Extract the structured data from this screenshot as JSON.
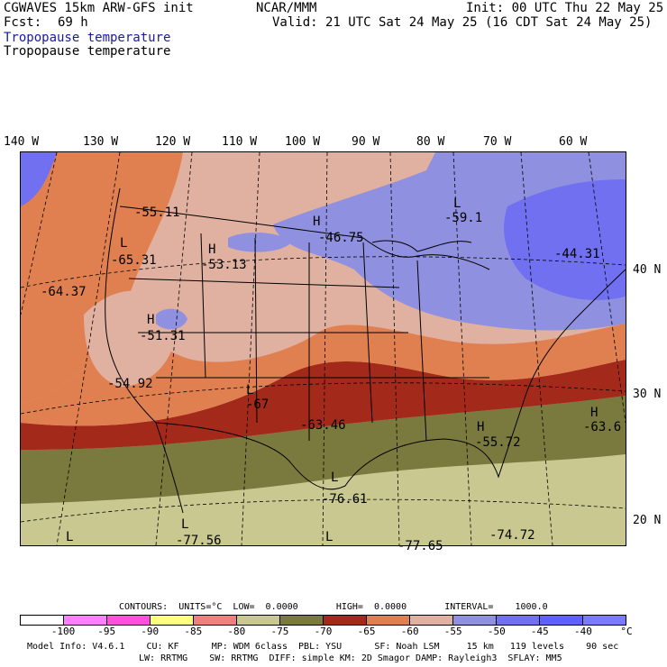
{
  "header": {
    "model": "CGWAVES 15km ARW-GFS init",
    "center": "NCAR/MMM",
    "init": "Init: 00 UTC Thu 22 May 25",
    "fcst_label": "Fcst:",
    "fcst_value": "69 h",
    "valid": "Valid: 21 UTC Sat 24 May 25 (16 CDT Sat 24 May 25)",
    "field_title_1": "Tropopause temperature",
    "field_title_2": "Tropopause temperature"
  },
  "axes": {
    "longitudes": [
      "140 W",
      "130 W",
      "120 W",
      "110 W",
      "100 W",
      "90 W",
      "80 W",
      "70 W",
      "60 W"
    ],
    "latitudes": [
      "40 N",
      "30 N",
      "20 N"
    ]
  },
  "map_labels": [
    {
      "letter": "L",
      "value": "-65.31"
    },
    {
      "letter": "",
      "value": "-55.11"
    },
    {
      "letter": "H",
      "value": "-53.13"
    },
    {
      "letter": "H",
      "value": "-46.75"
    },
    {
      "letter": "L",
      "value": "-59.1"
    },
    {
      "letter": "",
      "value": "-44.31"
    },
    {
      "letter": "",
      "value": "-64.37"
    },
    {
      "letter": "H",
      "value": "-51.31"
    },
    {
      "letter": "",
      "value": "-54.92"
    },
    {
      "letter": "L",
      "value": "-67"
    },
    {
      "letter": "",
      "value": "-63.46"
    },
    {
      "letter": "H",
      "value": "-55.72"
    },
    {
      "letter": "H",
      "value": "-63.6"
    },
    {
      "letter": "L",
      "value": "-76.61"
    },
    {
      "letter": "L",
      "value": "-77.56"
    },
    {
      "letter": "L",
      "value": ""
    },
    {
      "letter": "L",
      "value": "-77.65"
    },
    {
      "letter": "",
      "value": "-74.72"
    }
  ],
  "contours": {
    "text": "CONTOURS:  UNITS=°C  LOW=  0.0000       HIGH=  0.0000       INTERVAL=    1000.0"
  },
  "colorbar": {
    "colors": [
      "#ffffff",
      "#ff80ff",
      "#ff4fdc",
      "#ffff80",
      "#f08080",
      "#c8c890",
      "#7a7a3e",
      "#a32a1a",
      "#e08050",
      "#e0b0a0",
      "#9090e0",
      "#7070f0",
      "#6060ff",
      "#7b7bff"
    ],
    "labels": [
      "-100",
      "-95",
      "-90",
      "-85",
      "-80",
      "-75",
      "-70",
      "-65",
      "-60",
      "-55",
      "-50",
      "-45",
      "-40",
      "°C"
    ]
  },
  "footer": {
    "line1": "Model Info: V4.6.1    CU: KF      MP: WDM 6class  PBL: YSU      SF: Noah LSM     15 km   119 levels    90 sec",
    "line2": "LW: RRTMG    SW: RRTMG  DIFF: simple KM: 2D Smagor DAMP: Rayleigh3  SFLAY: MM5"
  }
}
